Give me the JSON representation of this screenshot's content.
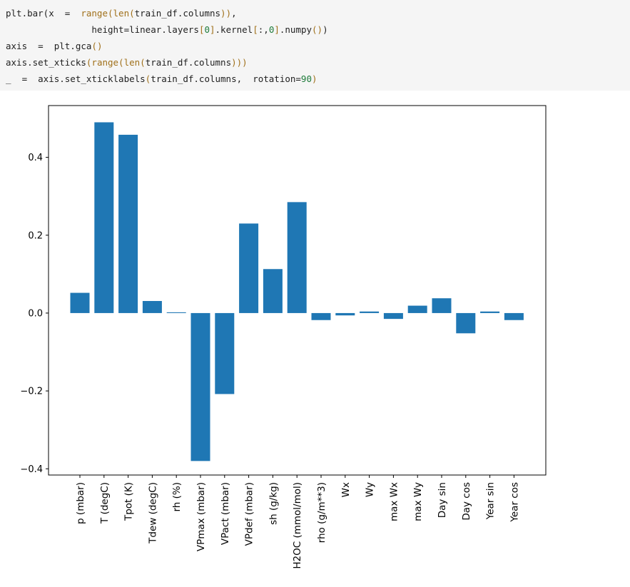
{
  "code_cell": {
    "lines": [
      "plt.bar(x = range(len(train_df.columns)),",
      "        height=linear.layers[0].kernel[:,0].numpy())",
      "axis = plt.gca()",
      "axis.set_xticks(range(len(train_df.columns)))",
      "_ = axis.set_xticklabels(train_df.columns, rotation=90)"
    ]
  },
  "chart_data": {
    "type": "bar",
    "categories": [
      "p (mbar)",
      "T (degC)",
      "Tpot (K)",
      "Tdew (degC)",
      "rh (%)",
      "VPmax (mbar)",
      "VPact (mbar)",
      "VPdef (mbar)",
      "sh (g/kg)",
      "H2OC (mmol/mol)",
      "rho (g/m**3)",
      "Wx",
      "Wy",
      "max Wx",
      "max Wy",
      "Day sin",
      "Day cos",
      "Year sin",
      "Year cos"
    ],
    "values": [
      0.052,
      0.49,
      0.458,
      0.031,
      0.002,
      -0.38,
      -0.208,
      0.23,
      0.113,
      0.285,
      -0.018,
      -0.006,
      0.004,
      -0.015,
      0.019,
      0.038,
      -0.052,
      0.004,
      -0.018
    ],
    "yticks": [
      0.4,
      0.2,
      0.0,
      -0.2,
      -0.4
    ],
    "ytick_labels": [
      "0.4",
      "0.2",
      "0.0",
      "−0.2",
      "−0.4"
    ],
    "ylim": [
      -0.416,
      0.533
    ],
    "bar_color": "#1f77b4",
    "title": "",
    "xlabel": "",
    "ylabel": "",
    "tick_rotation": 90
  }
}
